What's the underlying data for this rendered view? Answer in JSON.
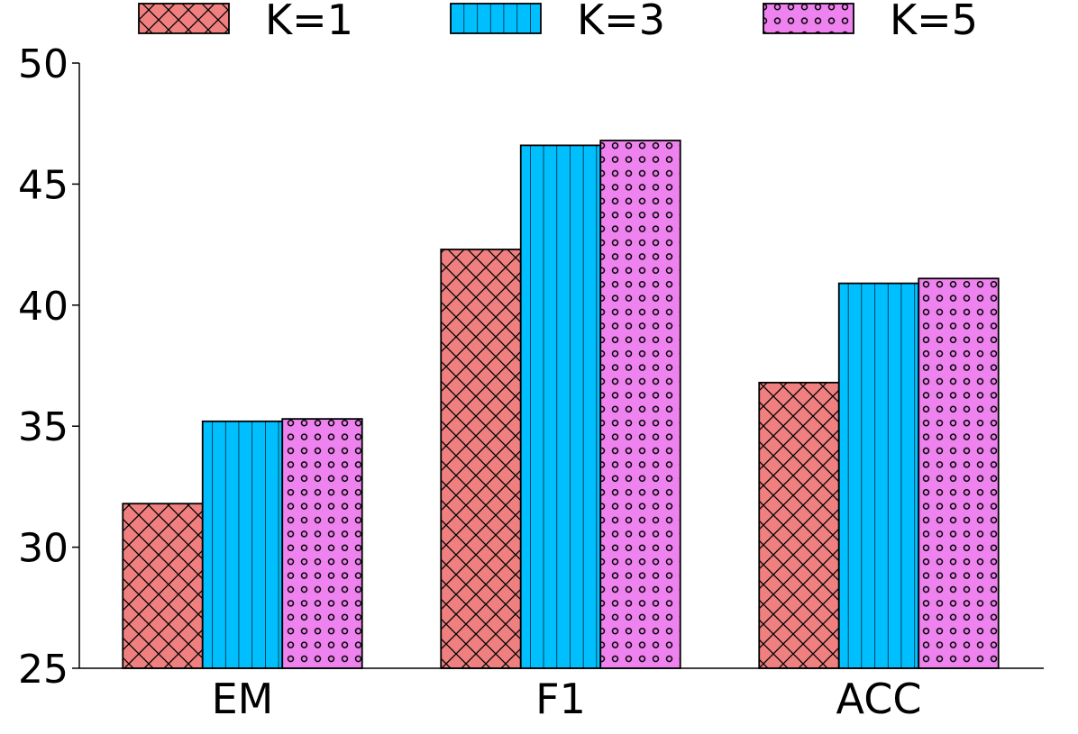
{
  "chart_data": {
    "type": "bar",
    "title": "",
    "xlabel": "",
    "ylabel": "",
    "categories": [
      "EM",
      "F1",
      "ACC"
    ],
    "series": [
      {
        "name": "K=1",
        "values": [
          31.8,
          42.3,
          36.8
        ],
        "color": "#f08080",
        "pattern": "crosshatch"
      },
      {
        "name": "K=3",
        "values": [
          35.2,
          46.6,
          40.9
        ],
        "color": "#00bfff",
        "pattern": "vertical-lines"
      },
      {
        "name": "K=5",
        "values": [
          35.3,
          46.8,
          41.1
        ],
        "color": "#ee82ee",
        "pattern": "circles"
      }
    ],
    "ylim": [
      25,
      50
    ],
    "yticks": [
      25,
      30,
      35,
      40,
      45,
      50
    ],
    "legend": "top-center",
    "grid": false
  }
}
